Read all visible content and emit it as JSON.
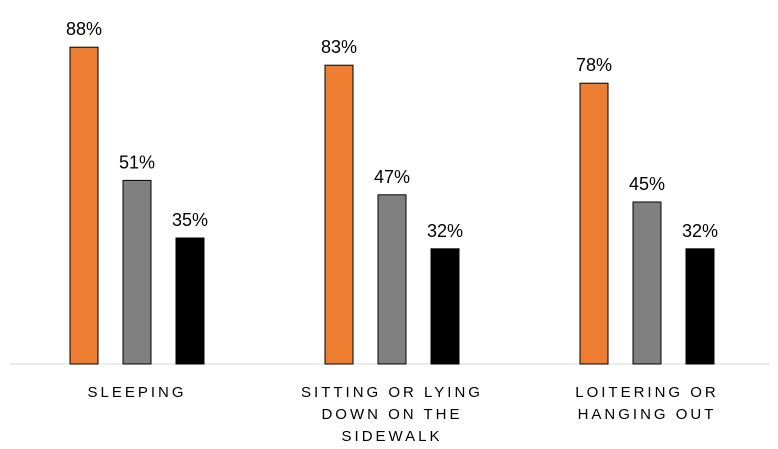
{
  "chart_data": {
    "type": "bar",
    "title": "",
    "xlabel": "",
    "ylabel": "",
    "ylim": [
      0,
      100
    ],
    "grid": false,
    "legend": "none",
    "categories": [
      [
        "SLEEPING"
      ],
      [
        "SITTING OR LYING",
        "DOWN ON THE",
        "SIDEWALK"
      ],
      [
        "LOITERING OR",
        "HANGING OUT"
      ]
    ],
    "series": [
      {
        "color": "#ED7D31",
        "values": [
          88,
          83,
          78
        ],
        "labels": [
          "88%",
          "83%",
          "78%"
        ]
      },
      {
        "color": "#808080",
        "values": [
          51,
          47,
          45
        ],
        "labels": [
          "51%",
          "47%",
          "45%"
        ]
      },
      {
        "color": "#000000",
        "values": [
          35,
          32,
          32
        ],
        "labels": [
          "35%",
          "32%",
          "32%"
        ]
      }
    ]
  }
}
